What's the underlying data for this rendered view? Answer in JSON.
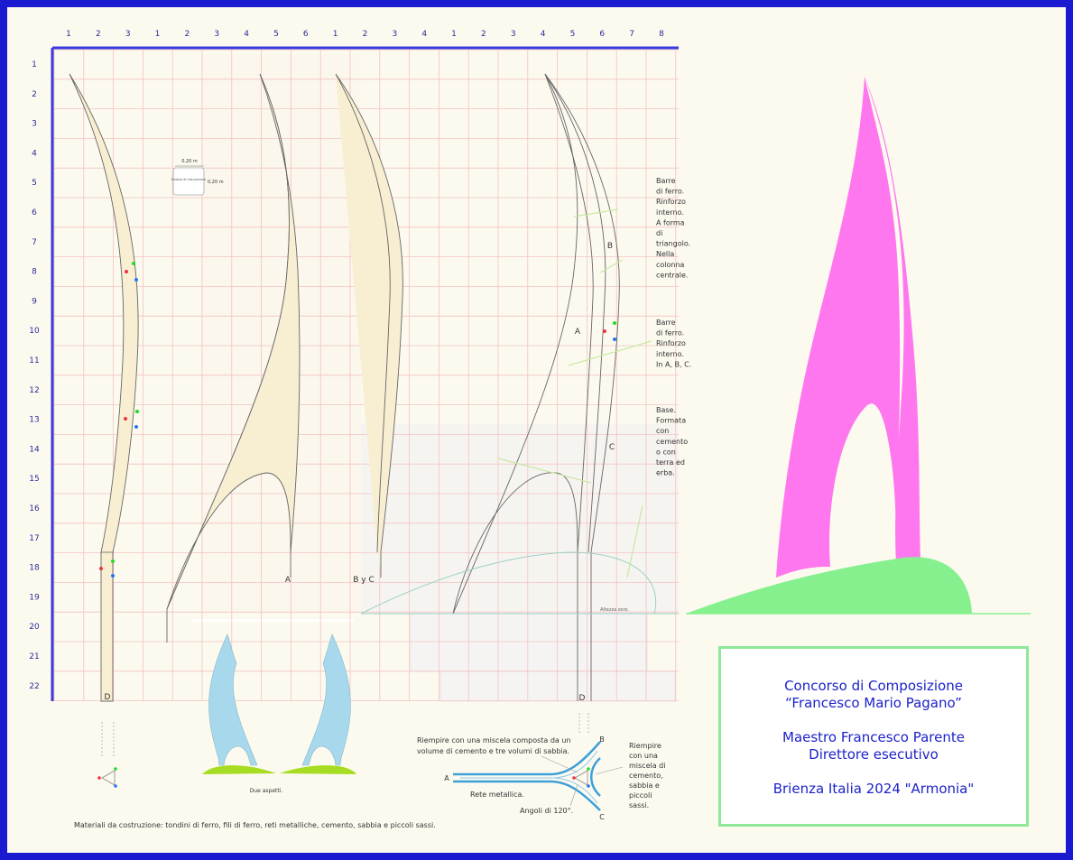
{
  "colors": {
    "frame": "#1a1ad0",
    "grid": "#f3c2c2",
    "axis": "#3a3ae0",
    "column_fill": "#f8eed2",
    "flame": "#ff77ee",
    "base": "#86f08e",
    "aspect_shape": "#a8d8ec",
    "title_text": "#1c22c8",
    "title_border": "#8ee89a"
  },
  "top_numbers": [
    "1",
    "2",
    "3",
    "1",
    "2",
    "3",
    "4",
    "5",
    "6",
    "1",
    "2",
    "3",
    "4",
    "1",
    "2",
    "3",
    "4",
    "5",
    "6",
    "7",
    "8"
  ],
  "left_numbers": [
    "1",
    "2",
    "3",
    "4",
    "5",
    "6",
    "7",
    "8",
    "9",
    "10",
    "11",
    "12",
    "13",
    "14",
    "15",
    "16",
    "17",
    "18",
    "19",
    "20",
    "21",
    "22"
  ],
  "module": {
    "width_label": "0,20 m",
    "height_label": "0,20 m",
    "caption": "Modulo di misurazione"
  },
  "labels": {
    "d_left": "D",
    "a_column": "A",
    "byc_column": "B y C",
    "a_assembly": "A",
    "b_assembly": "B",
    "c_assembly": "C",
    "d_right": "D",
    "altezza_zero": "Altezza zero."
  },
  "annotations": {
    "barre_triangolo": [
      "Barre",
      "di ferro.",
      "Rinforzo",
      "interno.",
      "A forma",
      "di",
      "triangolo.",
      "Nella",
      "colonna",
      "centrale."
    ],
    "barre_abc": [
      "Barre",
      "di ferro.",
      "Rinforzo",
      "interno.",
      "In A, B, C."
    ],
    "base": [
      "Base.",
      "Formata",
      "con",
      "cemento",
      "o con",
      "terra ed",
      "erba."
    ]
  },
  "due_aspetti": "Due aspetti.",
  "section": {
    "mix_text": [
      "Riempire con una miscela composta da un",
      "volume di cemento e tre volumi di sabbia."
    ],
    "fill_text": [
      "Riempire",
      "con una",
      "miscela di",
      "cemento,",
      "sabbia e",
      "piccoli",
      "sassi."
    ],
    "rete": "Rete metallica.",
    "angoli": "Angoli di 120°.",
    "label_a": "A",
    "label_b": "B",
    "label_c": "C"
  },
  "materials": "Materiali da costruzione: tondini di ferro, fili di ferro, reti metalliche, cemento, sabbia e piccoli sassi.",
  "title": {
    "line1": "Concorso di Composizione",
    "line2": "“Francesco Mario Pagano”",
    "line3": "Maestro Francesco Parente",
    "line4": "Direttore esecutivo",
    "line5": "Brienza  Italia  2024  \"Armonia\""
  }
}
